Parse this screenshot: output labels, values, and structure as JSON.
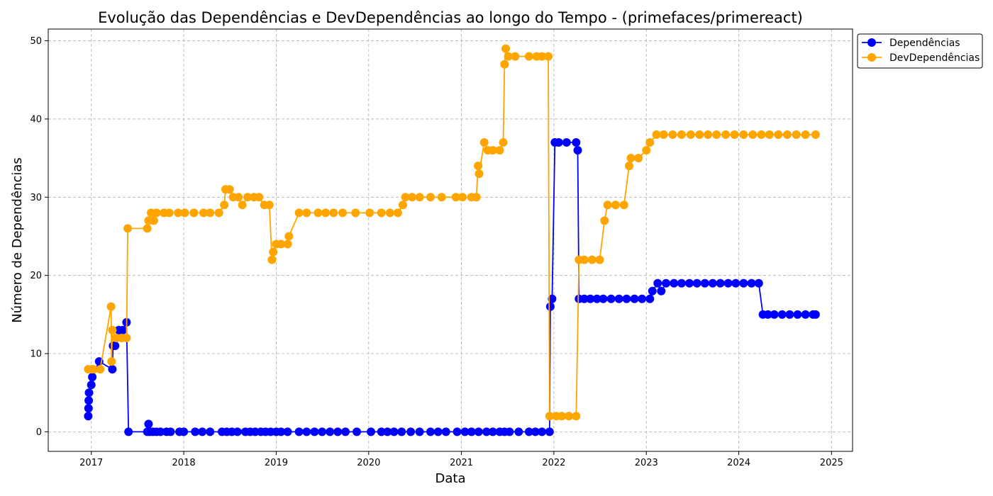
{
  "chart_data": {
    "type": "line",
    "title": "Evolução das Dependências e DevDependências ao longo do Tempo - (primefaces/primereact)",
    "xlabel": "Data",
    "ylabel": "Número de Dependências",
    "x_ticks": [
      "2017",
      "2018",
      "2019",
      "2020",
      "2021",
      "2022",
      "2023",
      "2024",
      "2025"
    ],
    "y_ticks": [
      "0",
      "10",
      "20",
      "30",
      "40",
      "50"
    ],
    "xlim": [
      "2016-07-15",
      "2025-03-25"
    ],
    "ylim": [
      -2.5,
      51.5
    ],
    "grid": true,
    "legend_position": "outside top-right",
    "series": [
      {
        "name": "Dependências",
        "color": "#0000ff",
        "points": [
          [
            "2016-12-20",
            2
          ],
          [
            "2016-12-21",
            3
          ],
          [
            "2016-12-22",
            4
          ],
          [
            "2016-12-23",
            5
          ],
          [
            "2017-01-01",
            6
          ],
          [
            "2017-01-05",
            7
          ],
          [
            "2017-02-01",
            9
          ],
          [
            "2017-03-25",
            8
          ],
          [
            "2017-03-28",
            11
          ],
          [
            "2017-04-05",
            11
          ],
          [
            "2017-04-20",
            13
          ],
          [
            "2017-05-05",
            13
          ],
          [
            "2017-05-20",
            14
          ],
          [
            "2017-05-28",
            0
          ],
          [
            "2017-08-10",
            0
          ],
          [
            "2017-08-15",
            1
          ],
          [
            "2017-08-20",
            0
          ],
          [
            "2017-09-01",
            0
          ],
          [
            "2017-09-15",
            0
          ],
          [
            "2017-10-01",
            0
          ],
          [
            "2017-10-25",
            0
          ],
          [
            "2017-11-10",
            0
          ],
          [
            "2017-12-15",
            0
          ],
          [
            "2018-01-01",
            0
          ],
          [
            "2018-02-15",
            0
          ],
          [
            "2018-03-15",
            0
          ],
          [
            "2018-04-15",
            0
          ],
          [
            "2018-06-01",
            0
          ],
          [
            "2018-06-20",
            0
          ],
          [
            "2018-07-10",
            0
          ],
          [
            "2018-08-01",
            0
          ],
          [
            "2018-09-01",
            0
          ],
          [
            "2018-09-20",
            0
          ],
          [
            "2018-10-10",
            0
          ],
          [
            "2018-11-01",
            0
          ],
          [
            "2018-11-20",
            0
          ],
          [
            "2018-12-10",
            0
          ],
          [
            "2019-01-01",
            0
          ],
          [
            "2019-01-20",
            0
          ],
          [
            "2019-02-15",
            0
          ],
          [
            "2019-04-01",
            0
          ],
          [
            "2019-05-01",
            0
          ],
          [
            "2019-06-01",
            0
          ],
          [
            "2019-07-01",
            0
          ],
          [
            "2019-08-01",
            0
          ],
          [
            "2019-09-01",
            0
          ],
          [
            "2019-10-01",
            0
          ],
          [
            "2019-11-15",
            0
          ],
          [
            "2020-01-10",
            0
          ],
          [
            "2020-02-20",
            0
          ],
          [
            "2020-03-15",
            0
          ],
          [
            "2020-04-10",
            0
          ],
          [
            "2020-05-10",
            0
          ],
          [
            "2020-06-15",
            0
          ],
          [
            "2020-07-20",
            0
          ],
          [
            "2020-09-01",
            0
          ],
          [
            "2020-10-01",
            0
          ],
          [
            "2020-11-01",
            0
          ],
          [
            "2020-12-15",
            0
          ],
          [
            "2021-01-15",
            0
          ],
          [
            "2021-02-10",
            0
          ],
          [
            "2021-03-10",
            0
          ],
          [
            "2021-04-10",
            0
          ],
          [
            "2021-05-05",
            0
          ],
          [
            "2021-06-01",
            0
          ],
          [
            "2021-06-20",
            0
          ],
          [
            "2021-07-10",
            0
          ],
          [
            "2021-08-15",
            0
          ],
          [
            "2021-09-25",
            0
          ],
          [
            "2021-10-20",
            0
          ],
          [
            "2021-11-15",
            0
          ],
          [
            "2021-12-15",
            0
          ],
          [
            "2021-12-18",
            16
          ],
          [
            "2021-12-25",
            17
          ],
          [
            "2022-01-05",
            37
          ],
          [
            "2022-01-20",
            37
          ],
          [
            "2022-02-20",
            37
          ],
          [
            "2022-03-30",
            37
          ],
          [
            "2022-04-05",
            36
          ],
          [
            "2022-04-10",
            17
          ],
          [
            "2022-05-01",
            17
          ],
          [
            "2022-05-25",
            17
          ],
          [
            "2022-06-20",
            17
          ],
          [
            "2022-07-15",
            17
          ],
          [
            "2022-08-15",
            17
          ],
          [
            "2022-09-15",
            17
          ],
          [
            "2022-10-15",
            17
          ],
          [
            "2022-11-15",
            17
          ],
          [
            "2022-12-15",
            17
          ],
          [
            "2023-01-15",
            17
          ],
          [
            "2023-01-25",
            18
          ],
          [
            "2023-02-15",
            19
          ],
          [
            "2023-03-01",
            18
          ],
          [
            "2023-03-20",
            19
          ],
          [
            "2023-04-20",
            19
          ],
          [
            "2023-05-20",
            19
          ],
          [
            "2023-06-20",
            19
          ],
          [
            "2023-07-20",
            19
          ],
          [
            "2023-08-20",
            19
          ],
          [
            "2023-09-20",
            19
          ],
          [
            "2023-10-20",
            19
          ],
          [
            "2023-11-20",
            19
          ],
          [
            "2023-12-20",
            19
          ],
          [
            "2024-01-20",
            19
          ],
          [
            "2024-02-20",
            19
          ],
          [
            "2024-03-20",
            19
          ],
          [
            "2024-04-05",
            15
          ],
          [
            "2024-04-25",
            15
          ],
          [
            "2024-05-20",
            15
          ],
          [
            "2024-06-20",
            15
          ],
          [
            "2024-07-20",
            15
          ],
          [
            "2024-08-20",
            15
          ],
          [
            "2024-09-20",
            15
          ],
          [
            "2024-10-20",
            15
          ],
          [
            "2024-10-30",
            15
          ]
        ]
      },
      {
        "name": "DevDependências",
        "color": "#ffa500",
        "points": [
          [
            "2016-12-20",
            8
          ],
          [
            "2017-01-01",
            8
          ],
          [
            "2017-01-10",
            8
          ],
          [
            "2017-02-05",
            8
          ],
          [
            "2017-03-20",
            16
          ],
          [
            "2017-03-22",
            9
          ],
          [
            "2017-03-25",
            13
          ],
          [
            "2017-04-10",
            12
          ],
          [
            "2017-05-01",
            12
          ],
          [
            "2017-05-20",
            12
          ],
          [
            "2017-05-25",
            26
          ],
          [
            "2017-08-10",
            26
          ],
          [
            "2017-08-15",
            27
          ],
          [
            "2017-08-25",
            28
          ],
          [
            "2017-09-05",
            27
          ],
          [
            "2017-09-15",
            28
          ],
          [
            "2017-10-15",
            28
          ],
          [
            "2017-11-05",
            28
          ],
          [
            "2017-12-10",
            28
          ],
          [
            "2018-01-05",
            28
          ],
          [
            "2018-02-10",
            28
          ],
          [
            "2018-03-20",
            28
          ],
          [
            "2018-04-15",
            28
          ],
          [
            "2018-05-20",
            28
          ],
          [
            "2018-06-10",
            29
          ],
          [
            "2018-06-15",
            31
          ],
          [
            "2018-07-01",
            31
          ],
          [
            "2018-07-15",
            30
          ],
          [
            "2018-08-05",
            30
          ],
          [
            "2018-08-20",
            29
          ],
          [
            "2018-09-10",
            30
          ],
          [
            "2018-10-05",
            30
          ],
          [
            "2018-10-25",
            30
          ],
          [
            "2018-11-15",
            29
          ],
          [
            "2018-12-05",
            29
          ],
          [
            "2018-12-15",
            22
          ],
          [
            "2018-12-20",
            23
          ],
          [
            "2019-01-01",
            24
          ],
          [
            "2019-01-20",
            24
          ],
          [
            "2019-02-15",
            24
          ],
          [
            "2019-02-20",
            25
          ],
          [
            "2019-04-01",
            28
          ],
          [
            "2019-05-01",
            28
          ],
          [
            "2019-06-15",
            28
          ],
          [
            "2019-07-15",
            28
          ],
          [
            "2019-08-15",
            28
          ],
          [
            "2019-09-20",
            28
          ],
          [
            "2019-11-10",
            28
          ],
          [
            "2020-01-05",
            28
          ],
          [
            "2020-02-20",
            28
          ],
          [
            "2020-03-25",
            28
          ],
          [
            "2020-04-25",
            28
          ],
          [
            "2020-05-15",
            29
          ],
          [
            "2020-05-25",
            30
          ],
          [
            "2020-06-20",
            30
          ],
          [
            "2020-07-20",
            30
          ],
          [
            "2020-09-01",
            30
          ],
          [
            "2020-10-15",
            30
          ],
          [
            "2020-12-10",
            30
          ],
          [
            "2021-01-05",
            30
          ],
          [
            "2021-02-10",
            30
          ],
          [
            "2021-03-01",
            30
          ],
          [
            "2021-03-08",
            34
          ],
          [
            "2021-03-12",
            33
          ],
          [
            "2021-04-01",
            37
          ],
          [
            "2021-04-15",
            36
          ],
          [
            "2021-05-05",
            36
          ],
          [
            "2021-06-01",
            36
          ],
          [
            "2021-06-15",
            37
          ],
          [
            "2021-06-20",
            47
          ],
          [
            "2021-06-25",
            49
          ],
          [
            "2021-07-05",
            48
          ],
          [
            "2021-08-01",
            48
          ],
          [
            "2021-09-25",
            48
          ],
          [
            "2021-10-25",
            48
          ],
          [
            "2021-11-15",
            48
          ],
          [
            "2021-12-10",
            48
          ],
          [
            "2021-12-15",
            2
          ],
          [
            "2022-01-10",
            2
          ],
          [
            "2022-02-01",
            2
          ],
          [
            "2022-03-01",
            2
          ],
          [
            "2022-03-30",
            2
          ],
          [
            "2022-04-10",
            22
          ],
          [
            "2022-05-01",
            22
          ],
          [
            "2022-06-01",
            22
          ],
          [
            "2022-07-01",
            22
          ],
          [
            "2022-07-20",
            27
          ],
          [
            "2022-08-01",
            29
          ],
          [
            "2022-09-01",
            29
          ],
          [
            "2022-10-05",
            29
          ],
          [
            "2022-10-25",
            34
          ],
          [
            "2022-11-01",
            35
          ],
          [
            "2022-12-01",
            35
          ],
          [
            "2023-01-01",
            36
          ],
          [
            "2023-01-15",
            37
          ],
          [
            "2023-02-10",
            38
          ],
          [
            "2023-03-10",
            38
          ],
          [
            "2023-04-15",
            38
          ],
          [
            "2023-05-20",
            38
          ],
          [
            "2023-06-25",
            38
          ],
          [
            "2023-07-30",
            38
          ],
          [
            "2023-09-01",
            38
          ],
          [
            "2023-10-05",
            38
          ],
          [
            "2023-11-10",
            38
          ],
          [
            "2023-12-15",
            38
          ],
          [
            "2024-01-20",
            38
          ],
          [
            "2024-02-25",
            38
          ],
          [
            "2024-03-30",
            38
          ],
          [
            "2024-05-01",
            38
          ],
          [
            "2024-06-05",
            38
          ],
          [
            "2024-07-10",
            38
          ],
          [
            "2024-08-15",
            38
          ],
          [
            "2024-09-20",
            38
          ],
          [
            "2024-10-30",
            38
          ]
        ]
      }
    ]
  }
}
